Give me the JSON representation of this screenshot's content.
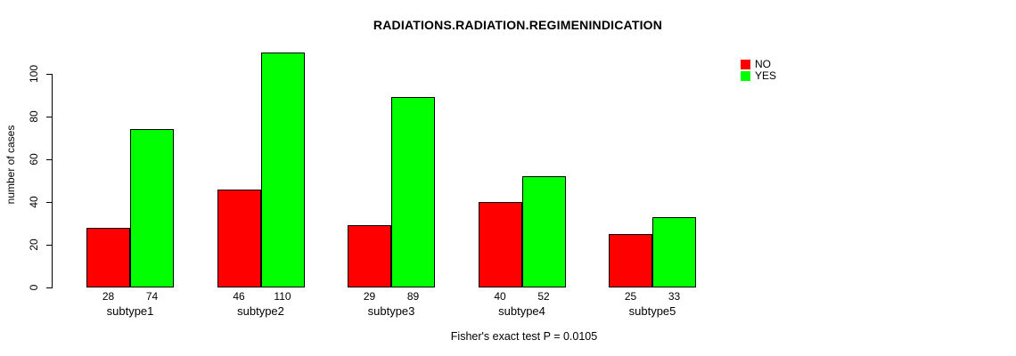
{
  "chart_data": {
    "type": "bar",
    "title": "RADIATIONS.RADIATION.REGIMENINDICATION",
    "ylabel": "number of cases",
    "xlabel": "",
    "categories": [
      "subtype1",
      "subtype2",
      "subtype3",
      "subtype4",
      "subtype5"
    ],
    "series": [
      {
        "name": "NO",
        "color": "#ff0000",
        "values": [
          28,
          46,
          29,
          40,
          25
        ]
      },
      {
        "name": "YES",
        "color": "#00ff00",
        "values": [
          74,
          110,
          89,
          52,
          33
        ]
      }
    ],
    "bar_value_labels": {
      "NO": [
        "28",
        "46",
        "29",
        "40",
        "25"
      ],
      "YES": [
        "74",
        "110",
        "89",
        "52",
        "33"
      ]
    },
    "ylim": [
      0,
      100
    ],
    "yticks": [
      0,
      20,
      40,
      60,
      80,
      100
    ],
    "grid": false,
    "legend_position": "top-right",
    "footnote": "Fisher's exact test P = 0.0105"
  },
  "colors": {
    "bar_no": "#ff0000",
    "bar_yes": "#00ff00",
    "axis": "#000000",
    "background": "#ffffff",
    "text": "#000000"
  }
}
